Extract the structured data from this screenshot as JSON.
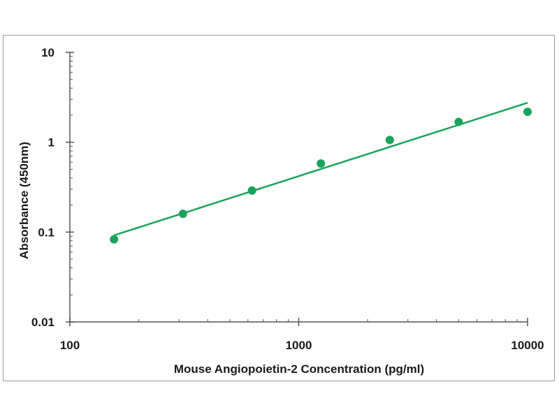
{
  "chart_data": {
    "type": "scatter",
    "title": "",
    "xlabel": "Mouse Angiopoietin-2  Concentration (pg/ml)",
    "ylabel": "Absorbance (450nm)",
    "x_scale": "log",
    "y_scale": "log",
    "xlim": [
      100,
      10000
    ],
    "ylim": [
      0.01,
      10
    ],
    "x_ticks": [
      100,
      1000,
      10000
    ],
    "x_tick_labels": [
      "100",
      "1000",
      "10000"
    ],
    "y_ticks": [
      0.01,
      0.1,
      1,
      10
    ],
    "y_tick_labels": [
      "0.01",
      "0.1",
      "1",
      "10"
    ],
    "grid": false,
    "legend": "none",
    "series": [
      {
        "x": [
          156,
          312,
          625,
          1250,
          2500,
          5000,
          10000
        ],
        "y": [
          0.083,
          0.16,
          0.29,
          0.58,
          1.06,
          1.68,
          2.18
        ],
        "color": "#1aa35a",
        "marker": "circle"
      }
    ],
    "fit_line": {
      "x": [
        156,
        10000
      ],
      "y": [
        0.092,
        2.75
      ],
      "color": "#1aa35a"
    }
  }
}
